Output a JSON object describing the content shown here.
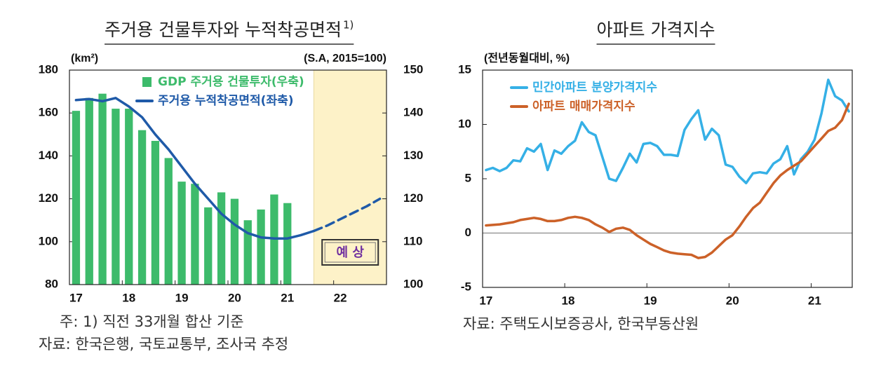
{
  "chart_data": [
    {
      "type": "combo",
      "title": "주거용 건물투자와 누적착공면적",
      "title_note": "1)",
      "ylabel": "(km²)",
      "y2label": "(S.A, 2015=100)",
      "annotation": "예 상",
      "notes": [
        "주: 1) 직전 33개월 합산 기준",
        "자료: 한국은행, 국토교통부, 조사국 추정"
      ],
      "categories": [
        "17",
        null,
        null,
        null,
        "18",
        null,
        null,
        null,
        "19",
        null,
        null,
        null,
        "20",
        null,
        null,
        null,
        "21",
        null,
        null,
        null,
        "22",
        null,
        null,
        null
      ],
      "ylim": [
        80,
        180
      ],
      "yticks": [
        80,
        100,
        120,
        140,
        160,
        180
      ],
      "y2lim": [
        100,
        150
      ],
      "y2ticks": [
        100,
        110,
        120,
        130,
        140,
        150
      ],
      "shade_color": "#fdf2c8",
      "series": [
        {
          "name": "GDP 주거용 건물투자(우축)",
          "type": "bar",
          "axis": "y2",
          "color": "#3dbb6b",
          "values": [
            140.5,
            143.5,
            144.5,
            141,
            141,
            136,
            133.5,
            129.5,
            124,
            123.5,
            118,
            121.5,
            120,
            115,
            117.5,
            121,
            119,
            null,
            null,
            null,
            null,
            null,
            null,
            null
          ]
        },
        {
          "name": "주거용 누적착공면적(좌축)",
          "type": "line",
          "color": "#1f5aa8",
          "values": [
            166,
            166.5,
            165.5,
            167,
            163,
            158,
            150,
            143,
            135,
            127,
            120,
            113,
            108,
            104,
            102,
            101.5,
            101.5,
            103,
            105,
            null,
            null,
            null,
            null,
            null
          ]
        },
        {
          "type": "line",
          "color": "#1f5aa8",
          "dash": true,
          "values": [
            null,
            null,
            null,
            null,
            null,
            null,
            null,
            null,
            null,
            null,
            null,
            null,
            null,
            null,
            null,
            null,
            null,
            null,
            105,
            107.5,
            110.5,
            113.5,
            116.5,
            120
          ]
        }
      ]
    },
    {
      "type": "line",
      "title": "아파트 가격지수",
      "ylabel": "(전년동월대비, %)",
      "notes": [
        "자료: 주택도시보증공사, 한국부동산원"
      ],
      "categories": [
        "17",
        null,
        null,
        null,
        null,
        null,
        null,
        null,
        null,
        null,
        null,
        null,
        "18",
        null,
        null,
        null,
        null,
        null,
        null,
        null,
        null,
        null,
        null,
        null,
        "19",
        null,
        null,
        null,
        null,
        null,
        null,
        null,
        null,
        null,
        null,
        null,
        "20",
        null,
        null,
        null,
        null,
        null,
        null,
        null,
        null,
        null,
        null,
        null,
        "21",
        null,
        null,
        null,
        null,
        null
      ],
      "ylim": [
        -5,
        15
      ],
      "yticks": [
        -5,
        0,
        5,
        10,
        15
      ],
      "hlines": [
        0
      ],
      "series": [
        {
          "name": "민간아파트 분양가격지수",
          "color": "#35b0e6",
          "values": [
            5.8,
            6.0,
            5.7,
            6.0,
            6.7,
            6.6,
            7.8,
            7.5,
            8.2,
            5.8,
            7.6,
            7.3,
            8.0,
            8.5,
            10.2,
            9.3,
            9.0,
            7.0,
            5.0,
            4.8,
            6.0,
            7.3,
            6.5,
            8.2,
            8.3,
            8.0,
            7.2,
            7.2,
            7.1,
            9.5,
            10.5,
            11.3,
            8.6,
            9.6,
            9.0,
            6.3,
            6.1,
            5.2,
            4.6,
            5.5,
            5.6,
            5.5,
            6.4,
            6.8,
            8.0,
            5.4,
            6.8,
            7.5,
            8.6,
            11.0,
            14.1,
            12.6,
            12.2,
            11.2
          ]
        },
        {
          "name": "아파트 매매가격지수",
          "color": "#cc6128",
          "values": [
            0.7,
            0.75,
            0.8,
            0.9,
            1.0,
            1.2,
            1.3,
            1.4,
            1.3,
            1.1,
            1.1,
            1.2,
            1.4,
            1.5,
            1.4,
            1.2,
            0.8,
            0.5,
            0.1,
            0.4,
            0.5,
            0.3,
            -0.2,
            -0.6,
            -1.0,
            -1.3,
            -1.6,
            -1.8,
            -1.9,
            -1.95,
            -2.0,
            -2.3,
            -2.2,
            -1.8,
            -1.2,
            -0.6,
            -0.2,
            0.6,
            1.5,
            2.3,
            2.8,
            3.7,
            4.6,
            5.3,
            5.8,
            6.2,
            6.6,
            7.3,
            8.0,
            8.7,
            9.4,
            9.7,
            10.4,
            11.9
          ]
        }
      ]
    }
  ]
}
